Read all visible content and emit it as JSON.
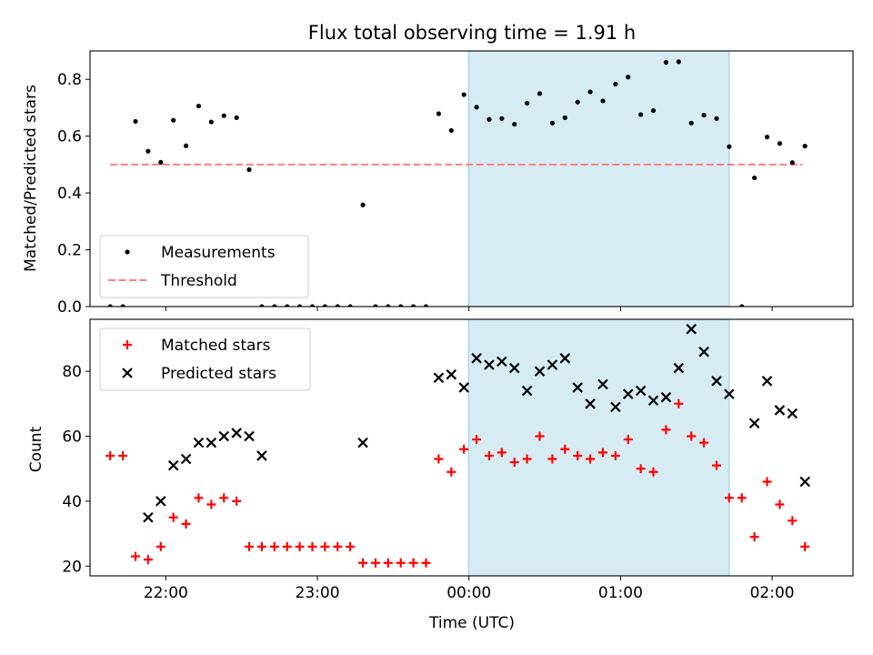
{
  "title": "Flux total observing time = 1.91 h",
  "xlabel": "Time (UTC)",
  "colors": {
    "measurement": "#000000",
    "threshold": "#ff7f7f",
    "matched": "#ff0000",
    "predicted": "#000000",
    "shade": "#add8e6"
  },
  "chart_data": [
    {
      "type": "scatter",
      "ylabel": "Matched/Predicted stars",
      "ylim": [
        0,
        0.9
      ],
      "yticks": [
        "0.0",
        "0.2",
        "0.4",
        "0.6",
        "0.8"
      ],
      "grid": false,
      "legend_position": "lower-left",
      "shaded_region": {
        "x_start": "23:59:50",
        "x_end": "01:43:00"
      },
      "threshold": {
        "name": "Threshold",
        "value": 0.5,
        "x_start": "21:38:00",
        "x_end": "02:12:00"
      },
      "series": [
        {
          "name": "Measurements",
          "marker": "dot",
          "points": [
            [
              "21:38",
              0.0
            ],
            [
              "21:43",
              0.0
            ],
            [
              "21:48",
              0.652
            ],
            [
              "21:53",
              0.547
            ],
            [
              "21:58",
              0.508
            ],
            [
              "22:03",
              0.656
            ],
            [
              "22:08",
              0.566
            ],
            [
              "22:13",
              0.706
            ],
            [
              "22:18",
              0.65
            ],
            [
              "22:23",
              0.672
            ],
            [
              "22:28",
              0.665
            ],
            [
              "22:33",
              0.482
            ],
            [
              "22:38",
              0.0
            ],
            [
              "22:43",
              0.0
            ],
            [
              "22:48",
              0.0
            ],
            [
              "22:53",
              0.0
            ],
            [
              "22:58",
              0.0
            ],
            [
              "23:03",
              0.0
            ],
            [
              "23:08",
              0.0
            ],
            [
              "23:13",
              0.0
            ],
            [
              "23:18",
              0.358
            ],
            [
              "23:23",
              0.0
            ],
            [
              "23:28",
              0.0
            ],
            [
              "23:33",
              0.0
            ],
            [
              "23:38",
              0.0
            ],
            [
              "23:43",
              0.0
            ],
            [
              "23:48",
              0.679
            ],
            [
              "23:53",
              0.62
            ],
            [
              "23:58",
              0.746
            ],
            [
              "00:03",
              0.702
            ],
            [
              "00:08",
              0.659
            ],
            [
              "00:13",
              0.662
            ],
            [
              "00:18",
              0.642
            ],
            [
              "00:23",
              0.716
            ],
            [
              "00:28",
              0.75
            ],
            [
              "00:33",
              0.646
            ],
            [
              "00:38",
              0.665
            ],
            [
              "00:43",
              0.72
            ],
            [
              "00:48",
              0.756
            ],
            [
              "00:53",
              0.724
            ],
            [
              "00:58",
              0.783
            ],
            [
              "01:03",
              0.808
            ],
            [
              "01:08",
              0.676
            ],
            [
              "01:13",
              0.69
            ],
            [
              "01:18",
              0.86
            ],
            [
              "01:23",
              0.862
            ],
            [
              "01:28",
              0.646
            ],
            [
              "01:33",
              0.674
            ],
            [
              "01:38",
              0.662
            ],
            [
              "01:43",
              0.563
            ],
            [
              "01:48",
              0.0
            ],
            [
              "01:53",
              0.453
            ],
            [
              "01:58",
              0.597
            ],
            [
              "02:03",
              0.574
            ],
            [
              "02:08",
              0.507
            ],
            [
              "02:13",
              0.565
            ]
          ]
        }
      ]
    },
    {
      "type": "scatter",
      "ylabel": "Count",
      "ylim": [
        17,
        96
      ],
      "yticks": [
        "20",
        "40",
        "60",
        "80"
      ],
      "xticks": [
        "22:00",
        "23:00",
        "00:00",
        "01:00",
        "02:00"
      ],
      "grid": false,
      "legend_position": "upper-left",
      "shaded_region": {
        "x_start": "23:59:50",
        "x_end": "01:43:00"
      },
      "series": [
        {
          "name": "Matched stars",
          "marker": "plus",
          "points": [
            [
              "21:38",
              54
            ],
            [
              "21:43",
              54
            ],
            [
              "21:48",
              23
            ],
            [
              "21:53",
              22
            ],
            [
              "21:58",
              26
            ],
            [
              "22:03",
              35
            ],
            [
              "22:08",
              33
            ],
            [
              "22:13",
              41
            ],
            [
              "22:18",
              39
            ],
            [
              "22:23",
              41
            ],
            [
              "22:28",
              40
            ],
            [
              "22:33",
              26
            ],
            [
              "22:38",
              26
            ],
            [
              "22:43",
              26
            ],
            [
              "22:48",
              26
            ],
            [
              "22:53",
              26
            ],
            [
              "22:58",
              26
            ],
            [
              "23:03",
              26
            ],
            [
              "23:08",
              26
            ],
            [
              "23:13",
              26
            ],
            [
              "23:18",
              21
            ],
            [
              "23:23",
              21
            ],
            [
              "23:28",
              21
            ],
            [
              "23:33",
              21
            ],
            [
              "23:38",
              21
            ],
            [
              "23:43",
              21
            ],
            [
              "23:48",
              53
            ],
            [
              "23:53",
              49
            ],
            [
              "23:58",
              56
            ],
            [
              "00:03",
              59
            ],
            [
              "00:08",
              54
            ],
            [
              "00:13",
              55
            ],
            [
              "00:18",
              52
            ],
            [
              "00:23",
              53
            ],
            [
              "00:28",
              60
            ],
            [
              "00:33",
              53
            ],
            [
              "00:38",
              56
            ],
            [
              "00:43",
              54
            ],
            [
              "00:48",
              53
            ],
            [
              "00:53",
              55
            ],
            [
              "00:58",
              54
            ],
            [
              "01:03",
              59
            ],
            [
              "01:08",
              50
            ],
            [
              "01:13",
              49
            ],
            [
              "01:18",
              62
            ],
            [
              "01:23",
              70
            ],
            [
              "01:28",
              60
            ],
            [
              "01:33",
              58
            ],
            [
              "01:38",
              51
            ],
            [
              "01:43",
              41
            ],
            [
              "01:48",
              41
            ],
            [
              "01:53",
              29
            ],
            [
              "01:58",
              46
            ],
            [
              "02:03",
              39
            ],
            [
              "02:08",
              34
            ],
            [
              "02:13",
              26
            ]
          ]
        },
        {
          "name": "Predicted stars",
          "marker": "x",
          "points": [
            [
              "21:53",
              35
            ],
            [
              "21:58",
              40
            ],
            [
              "22:03",
              51
            ],
            [
              "22:08",
              53
            ],
            [
              "22:13",
              58
            ],
            [
              "22:18",
              58
            ],
            [
              "22:23",
              60
            ],
            [
              "22:28",
              61
            ],
            [
              "22:33",
              60
            ],
            [
              "22:38",
              54
            ],
            [
              "23:18",
              58
            ],
            [
              "23:48",
              78
            ],
            [
              "23:53",
              79
            ],
            [
              "23:58",
              75
            ],
            [
              "00:03",
              84
            ],
            [
              "00:08",
              82
            ],
            [
              "00:13",
              83
            ],
            [
              "00:18",
              81
            ],
            [
              "00:23",
              74
            ],
            [
              "00:28",
              80
            ],
            [
              "00:33",
              82
            ],
            [
              "00:38",
              84
            ],
            [
              "00:43",
              75
            ],
            [
              "00:48",
              70
            ],
            [
              "00:53",
              76
            ],
            [
              "00:58",
              69
            ],
            [
              "01:03",
              73
            ],
            [
              "01:08",
              74
            ],
            [
              "01:13",
              71
            ],
            [
              "01:18",
              72
            ],
            [
              "01:23",
              81
            ],
            [
              "01:28",
              93
            ],
            [
              "01:33",
              86
            ],
            [
              "01:38",
              77
            ],
            [
              "01:43",
              73
            ],
            [
              "01:53",
              64
            ],
            [
              "01:58",
              77
            ],
            [
              "02:03",
              68
            ],
            [
              "02:08",
              67
            ],
            [
              "02:13",
              46
            ]
          ]
        }
      ]
    }
  ]
}
